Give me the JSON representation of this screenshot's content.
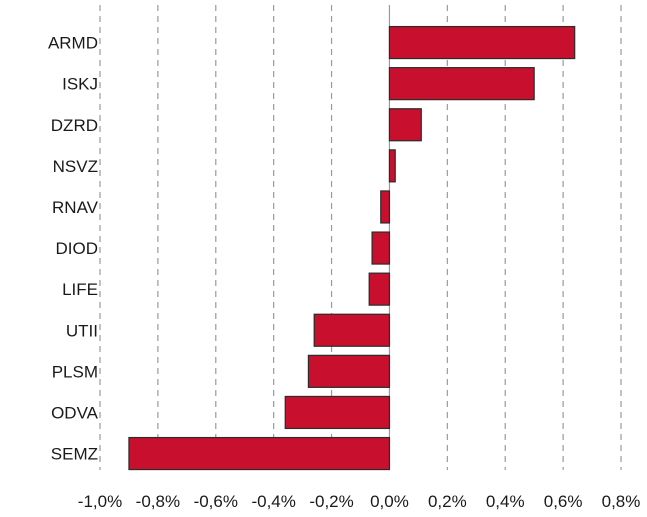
{
  "chart_data": {
    "type": "bar",
    "orientation": "horizontal",
    "title": "",
    "xlabel": "",
    "ylabel": "",
    "categories": [
      "ARMD",
      "ISKJ",
      "DZRD",
      "NSVZ",
      "RNAV",
      "DIOD",
      "LIFE",
      "UTII",
      "PLSM",
      "ODVA",
      "SEMZ"
    ],
    "values": [
      0.64,
      0.5,
      0.11,
      0.02,
      -0.03,
      -0.06,
      -0.07,
      -0.26,
      -0.28,
      -0.36,
      -0.9
    ],
    "xlim": [
      -1.0,
      0.8
    ],
    "ticks": [
      -1.0,
      -0.8,
      -0.6,
      -0.4,
      -0.2,
      0.0,
      0.2,
      0.4,
      0.6,
      0.8
    ],
    "tick_labels": [
      "-1,0%",
      "-0,8%",
      "-0,6%",
      "-0,4%",
      "-0,2%",
      "0,0%",
      "0,2%",
      "0,4%",
      "0,6%",
      "0,8%"
    ],
    "grid": "vertical dashed",
    "legend": "none",
    "bar_color": "#c8102e"
  }
}
